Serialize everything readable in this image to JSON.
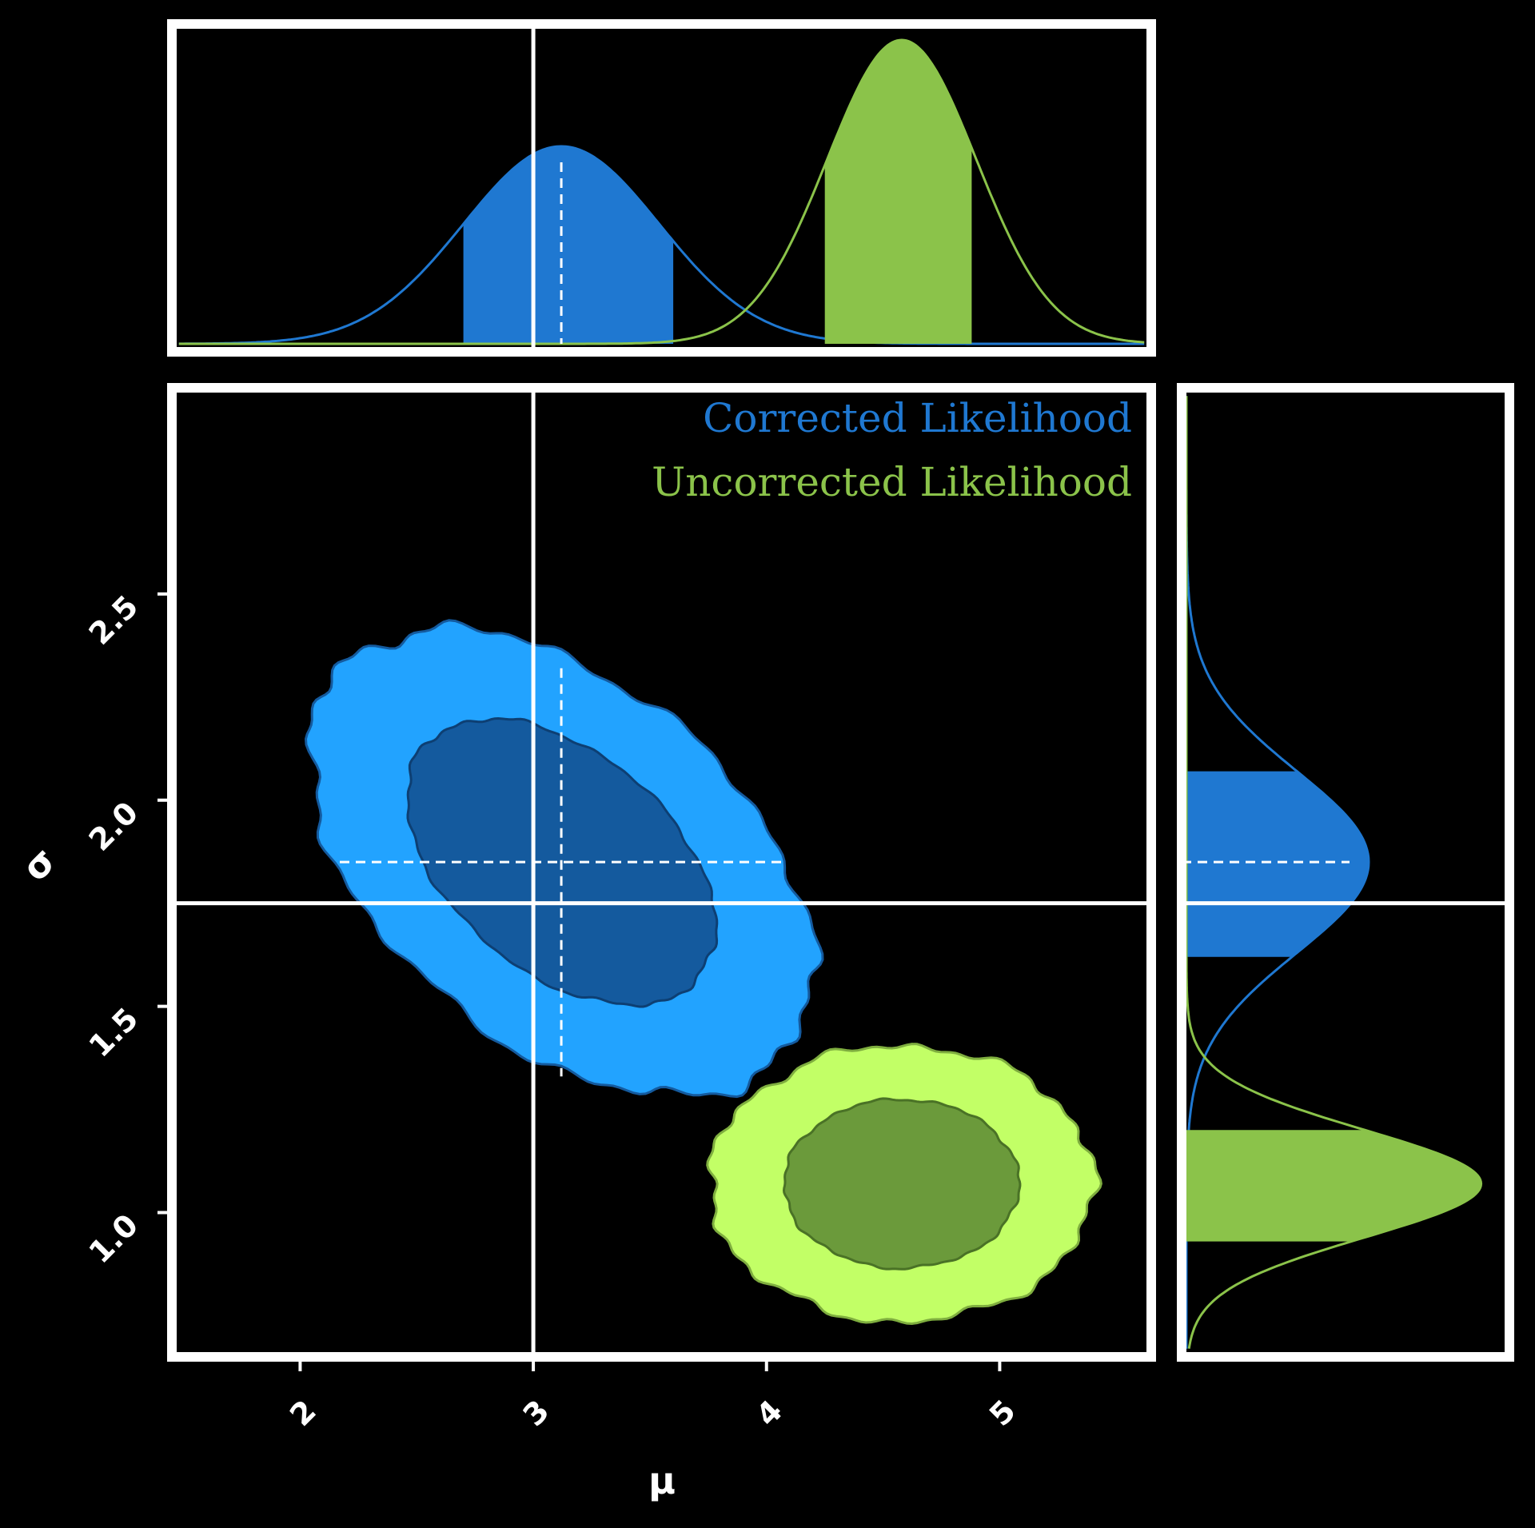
{
  "chart_data": {
    "type": "corner-contour",
    "xlabel": "μ",
    "ylabel": "σ",
    "x_ticks": [
      "2",
      "3",
      "4",
      "5"
    ],
    "y_ticks": [
      "1.0",
      "1.5",
      "2.0",
      "2.5"
    ],
    "xlim": [
      1.45,
      5.65
    ],
    "ylim": [
      0.65,
      3.0
    ],
    "truth": {
      "mu": 3.0,
      "sigma": 1.75
    },
    "grid": false,
    "legend_position": "top-right",
    "series": [
      {
        "name": "Corrected Likelihood",
        "color": "#1f78d1",
        "contour_inner_color": "#145a9e",
        "contour_outer_color": "#22a3ff",
        "mu_mean": 3.12,
        "mu_std": 0.42,
        "mu_interval": [
          2.7,
          3.6
        ],
        "sigma_mean": 1.85,
        "sigma_std": 0.22,
        "sigma_interval": [
          1.62,
          2.07
        ],
        "rho": -0.45
      },
      {
        "name": "Uncorrected Likelihood",
        "color": "#8bc34a",
        "contour_inner_color": "#6b9a3b",
        "contour_outer_color": "#c2ff66",
        "mu_mean": 4.58,
        "mu_std": 0.32,
        "mu_interval": [
          4.25,
          4.88
        ],
        "sigma_mean": 1.07,
        "sigma_std": 0.13,
        "sigma_interval": [
          0.93,
          1.2
        ],
        "rho": 0.0
      }
    ]
  }
}
